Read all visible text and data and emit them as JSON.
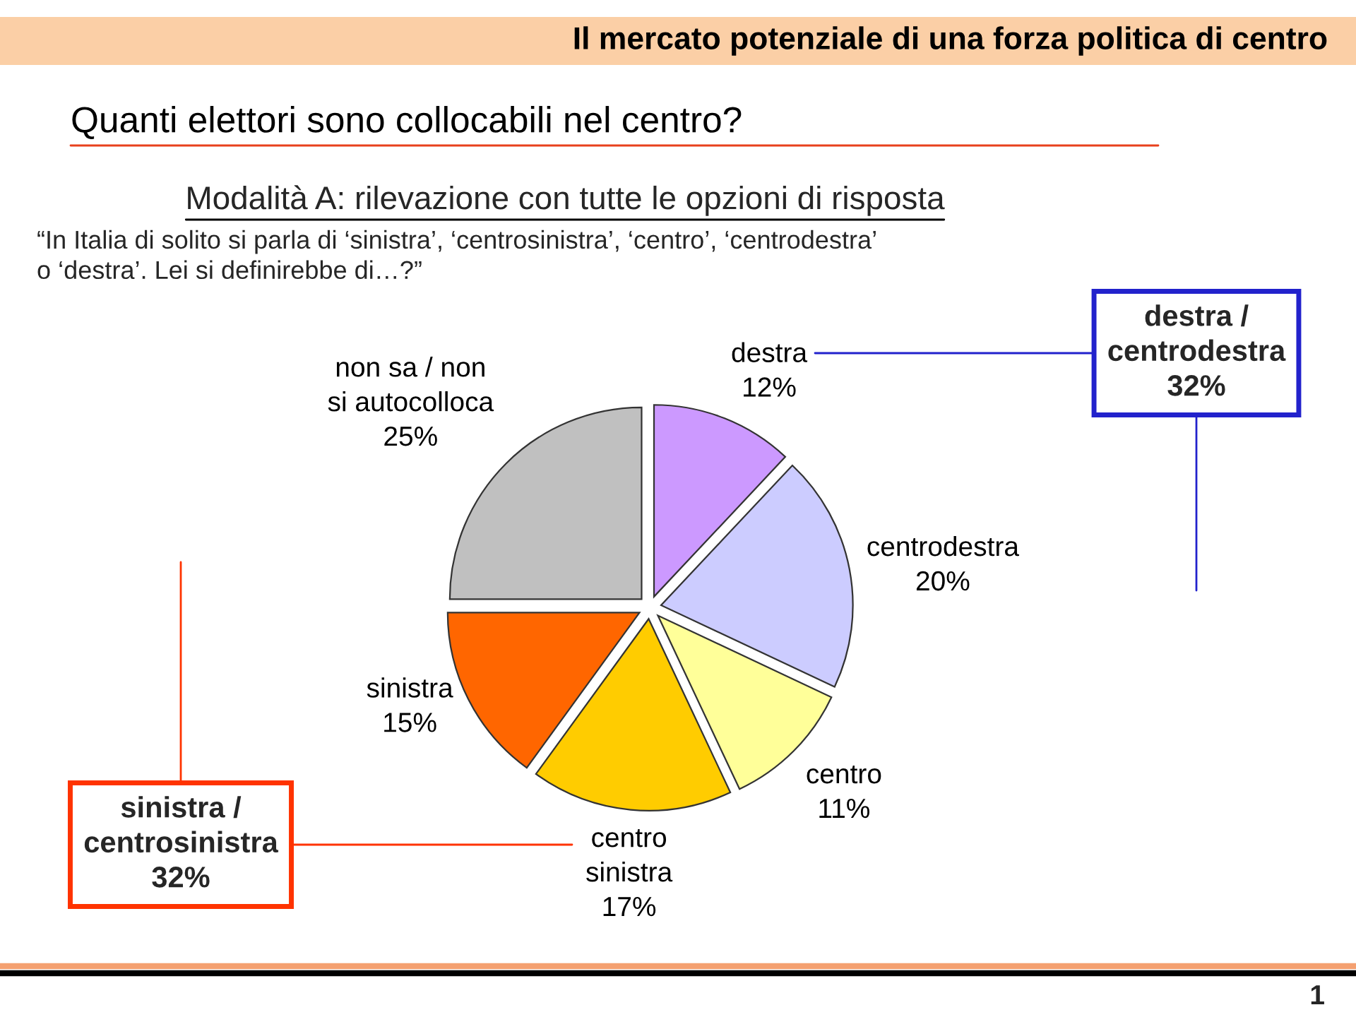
{
  "chart_data": {
    "type": "pie",
    "title": "Il mercato potenziale di una forza politica di centro",
    "subtitle": "Quanti elettori sono collocabili nel centro?",
    "categories": [
      "destra",
      "centrodestra",
      "centro",
      "centro sinistra",
      "sinistra",
      "non sa / non si autocolloca"
    ],
    "values": [
      12,
      20,
      11,
      17,
      15,
      25
    ],
    "value_labels": [
      "12%",
      "20%",
      "11%",
      "17%",
      "15%",
      "25%"
    ],
    "colors": [
      "#cc99ff",
      "#ccccff",
      "#ffff99",
      "#ffcc00",
      "#ff6600",
      "#c0c0c0"
    ],
    "annotations": [
      "Modalità A: rilevazione con tutte le opzioni di risposta",
      "“In Italia di solito si parla di ‘sinistra’, ‘centrosinistra’, ‘centro’, ‘centrodestra’ o ‘destra’. Lei si definirebbe di…?”",
      "destra / centrodestra 32%",
      "sinistra / centrosinistra 32%",
      "1"
    ]
  }
}
